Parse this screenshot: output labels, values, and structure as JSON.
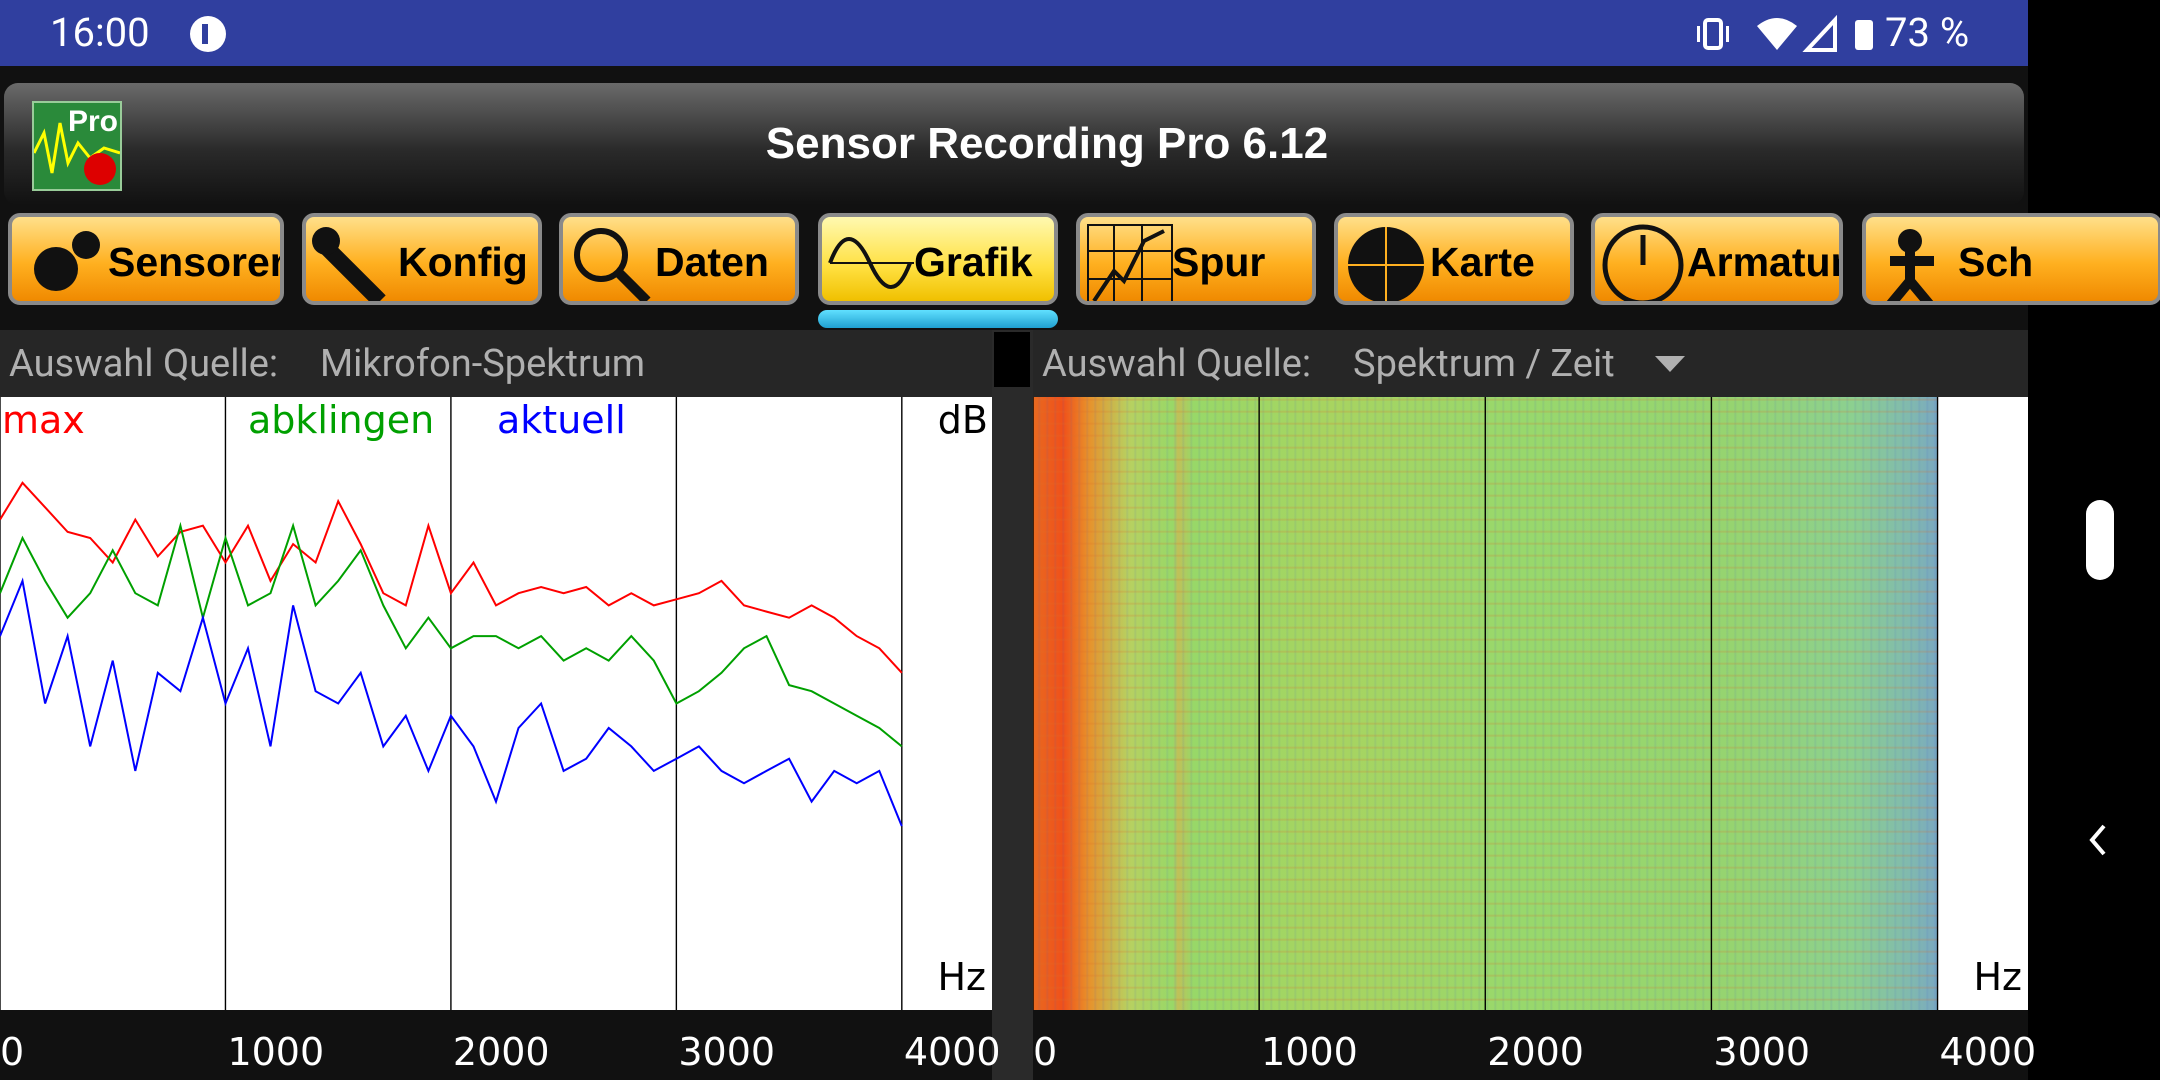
{
  "status_bar": {
    "time": "16:00",
    "battery": "73 %"
  },
  "app_bar": {
    "title": "Sensor Recording Pro 6.12",
    "logo": "Pro"
  },
  "tabs": [
    "Sensoren",
    "Konfig",
    "Daten",
    "Grafik",
    "Spur",
    "Karte",
    "Armatur",
    "Sch"
  ],
  "left_panel": {
    "source_label": "Auswahl Quelle:",
    "source_value": "Mikrofon-Spektrum"
  },
  "right_panel": {
    "source_label": "Auswahl Quelle:",
    "source_value": "Spektrum / Zeit"
  },
  "chart_data": [
    {
      "type": "line",
      "y_label": "dB",
      "x_label": "Hz",
      "x": [
        0,
        100,
        200,
        300,
        400,
        500,
        600,
        700,
        800,
        900,
        1000,
        1100,
        1200,
        1300,
        1400,
        1500,
        1600,
        1700,
        1800,
        1900,
        2000,
        2100,
        2200,
        2300,
        2400,
        2500,
        2600,
        2700,
        2800,
        2900,
        3000,
        3100,
        3200,
        3300,
        3400,
        3500,
        3600,
        3700,
        3800,
        3900,
        4000
      ],
      "series": [
        {
          "name": "max",
          "color": "#ff0000",
          "values": [
            80,
            86,
            82,
            78,
            77,
            73,
            80,
            74,
            78,
            79,
            73,
            79,
            70,
            76,
            73,
            83,
            76,
            68,
            66,
            79,
            68,
            73,
            66,
            68,
            69,
            68,
            69,
            66,
            68,
            66,
            67,
            68,
            70,
            66,
            65,
            64,
            66,
            64,
            61,
            59,
            55
          ]
        },
        {
          "name": "abklingen",
          "color": "#00a000",
          "values": [
            68,
            77,
            70,
            64,
            68,
            75,
            68,
            66,
            79,
            64,
            77,
            66,
            68,
            79,
            66,
            70,
            75,
            66,
            59,
            64,
            59,
            61,
            61,
            59,
            61,
            57,
            59,
            57,
            61,
            57,
            50,
            52,
            55,
            59,
            61,
            53,
            52,
            50,
            48,
            46,
            43
          ]
        },
        {
          "name": "aktuell",
          "color": "#0000ff",
          "values": [
            61,
            70,
            50,
            61,
            43,
            57,
            39,
            55,
            52,
            64,
            50,
            59,
            43,
            66,
            52,
            50,
            55,
            43,
            48,
            39,
            48,
            43,
            34,
            46,
            50,
            39,
            41,
            46,
            43,
            39,
            41,
            43,
            39,
            37,
            39,
            41,
            34,
            39,
            37,
            39,
            30
          ]
        }
      ],
      "xlim": [
        0,
        4400
      ],
      "ylim": [
        0,
        100
      ],
      "xticks": [
        0,
        1000,
        2000,
        3000,
        4000
      ]
    },
    {
      "type": "spectrogram",
      "x_label": "Hz",
      "xlim": [
        0,
        4400
      ],
      "xticks": [
        0,
        1000,
        2000,
        3000,
        4000
      ]
    }
  ]
}
